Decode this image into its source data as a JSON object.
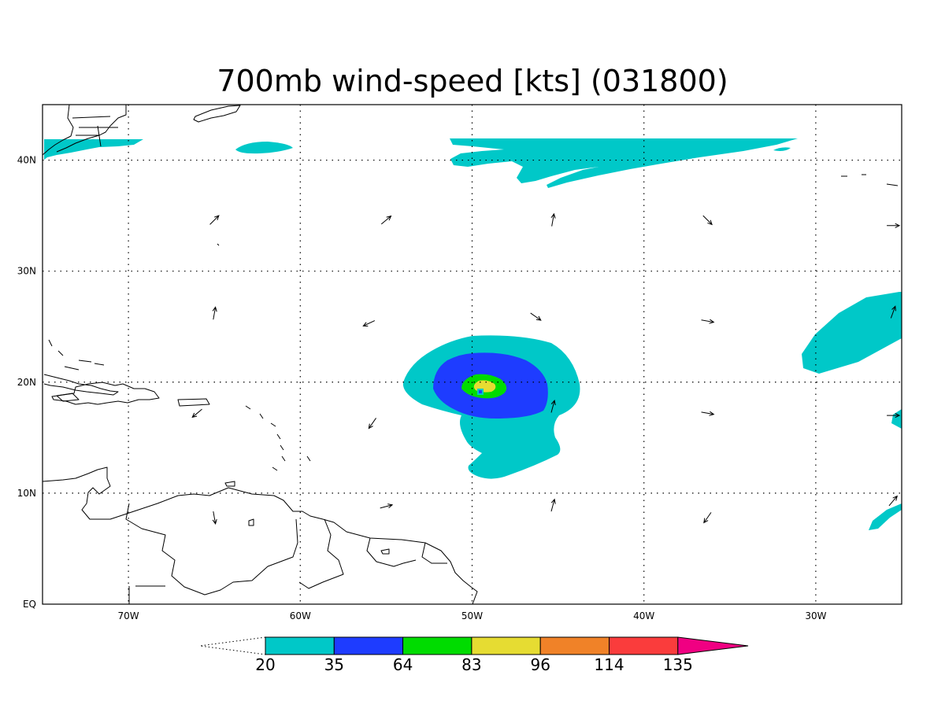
{
  "title": "700mb wind-speed [kts] (031800)",
  "lon_range": [
    -75,
    -25
  ],
  "lat_range": [
    0,
    45
  ],
  "lon_ticks": [
    {
      "value": -70,
      "label": "70W"
    },
    {
      "value": -60,
      "label": "60W"
    },
    {
      "value": -50,
      "label": "50W"
    },
    {
      "value": -40,
      "label": "40W"
    },
    {
      "value": -30,
      "label": "30W"
    }
  ],
  "lat_ticks": [
    {
      "value": 0,
      "label": "EQ"
    },
    {
      "value": 10,
      "label": "10N"
    },
    {
      "value": 20,
      "label": "20N"
    },
    {
      "value": 30,
      "label": "30N"
    },
    {
      "value": 40,
      "label": "40N"
    }
  ],
  "colorbar": {
    "levels": [
      "20",
      "35",
      "64",
      "83",
      "96",
      "114",
      "135"
    ],
    "colors": [
      "#00c8c8",
      "#1e3cff",
      "#00dc00",
      "#e6dc32",
      "#f08228",
      "#fa3c3c",
      "#f00082"
    ]
  },
  "wind_arrows": [
    {
      "lon": -65,
      "lat": 34.6,
      "dir": 45
    },
    {
      "lon": -55,
      "lat": 34.6,
      "dir": 50
    },
    {
      "lon": -45.3,
      "lat": 34.6,
      "dir": 10
    },
    {
      "lon": -36.3,
      "lat": 34.6,
      "dir": 135
    },
    {
      "lon": -25.5,
      "lat": 34.1,
      "dir": 90
    },
    {
      "lon": -65,
      "lat": 26.2,
      "dir": 10
    },
    {
      "lon": -56,
      "lat": 25.3,
      "dir": 245
    },
    {
      "lon": -46.3,
      "lat": 25.9,
      "dir": 125
    },
    {
      "lon": -36.3,
      "lat": 25.5,
      "dir": 100
    },
    {
      "lon": -25.5,
      "lat": 26.3,
      "dir": 20
    },
    {
      "lon": -66,
      "lat": 17.2,
      "dir": 230
    },
    {
      "lon": -55.8,
      "lat": 16.3,
      "dir": 215
    },
    {
      "lon": -45.3,
      "lat": 17.8,
      "dir": 15
    },
    {
      "lon": -36.3,
      "lat": 17.2,
      "dir": 100
    },
    {
      "lon": -25.5,
      "lat": 17.0,
      "dir": 90
    },
    {
      "lon": -65,
      "lat": 7.8,
      "dir": 170
    },
    {
      "lon": -55,
      "lat": 8.8,
      "dir": 75
    },
    {
      "lon": -45.3,
      "lat": 8.9,
      "dir": 15
    },
    {
      "lon": -36.3,
      "lat": 7.8,
      "dir": 215
    },
    {
      "lon": -25.5,
      "lat": 9.3,
      "dir": 40
    }
  ]
}
